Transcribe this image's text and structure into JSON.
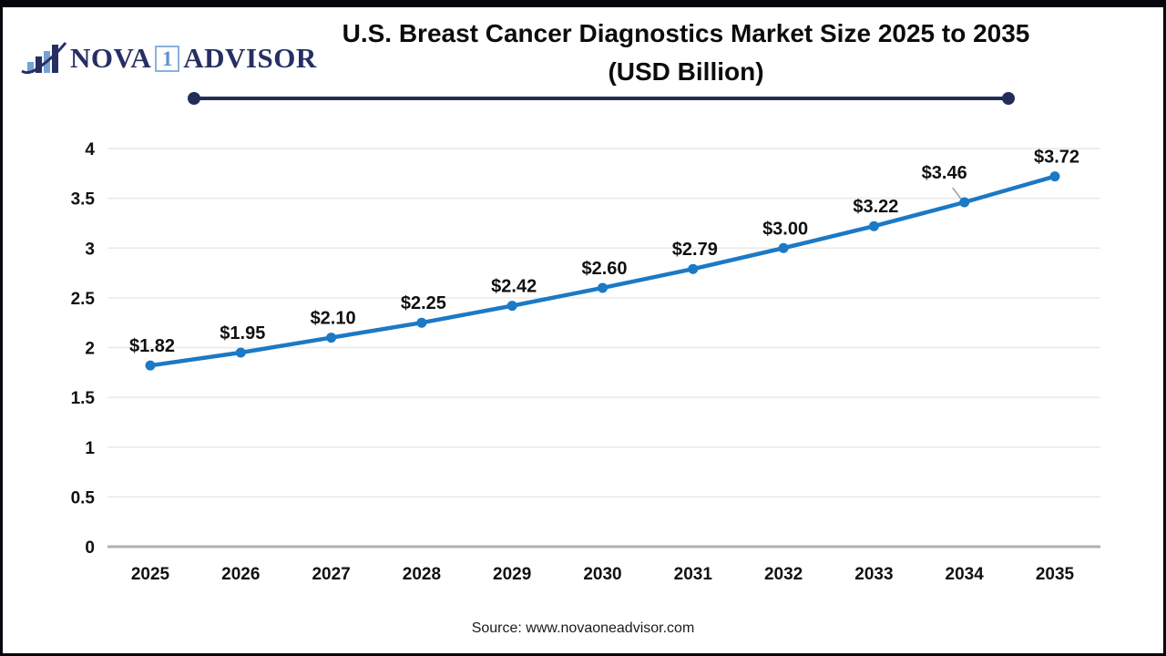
{
  "header": {
    "logo": {
      "nova": "NOVA",
      "one": "1",
      "advisor": "ADVISOR",
      "navy": "#262f63",
      "light_blue": "#74a3d6"
    },
    "title_line1": "U.S. Breast Cancer Diagnostics Market Size 2025 to 2035",
    "title_line2": "(USD Billion)"
  },
  "chart_data": {
    "type": "line",
    "title": "U.S. Breast Cancer Diagnostics Market Size 2025 to 2035 (USD Billion)",
    "categories": [
      "2025",
      "2026",
      "2027",
      "2028",
      "2029",
      "2030",
      "2031",
      "2032",
      "2033",
      "2034",
      "2035"
    ],
    "values": [
      1.82,
      1.95,
      2.1,
      2.25,
      2.42,
      2.6,
      2.79,
      3.0,
      3.22,
      3.46,
      3.72
    ],
    "point_labels": [
      "$1.82",
      "$1.95",
      "$2.10",
      "$2.25",
      "$2.42",
      "$2.60",
      "$2.79",
      "$3.00",
      "$3.22",
      "$3.46",
      "$3.72"
    ],
    "xlabel": "",
    "ylabel": "",
    "ylim": [
      0,
      4
    ],
    "yticks": [
      0,
      0.5,
      1,
      1.5,
      2,
      2.5,
      3,
      3.5,
      4
    ],
    "ytick_labels": [
      "0",
      "0.5",
      "1",
      "1.5",
      "2",
      "2.5",
      "3",
      "3.5",
      "4"
    ],
    "grid": true,
    "legend": "none",
    "line_color": "#1b79c5",
    "marker_color": "#1b79c5",
    "grid_color": "#e9e9e9",
    "axis_line_color": "#b0b0b0",
    "leader_label_index": 9,
    "leader_line_color": "#a0a0a0"
  },
  "footer": {
    "source": "Source: www.novaoneadvisor.com"
  }
}
